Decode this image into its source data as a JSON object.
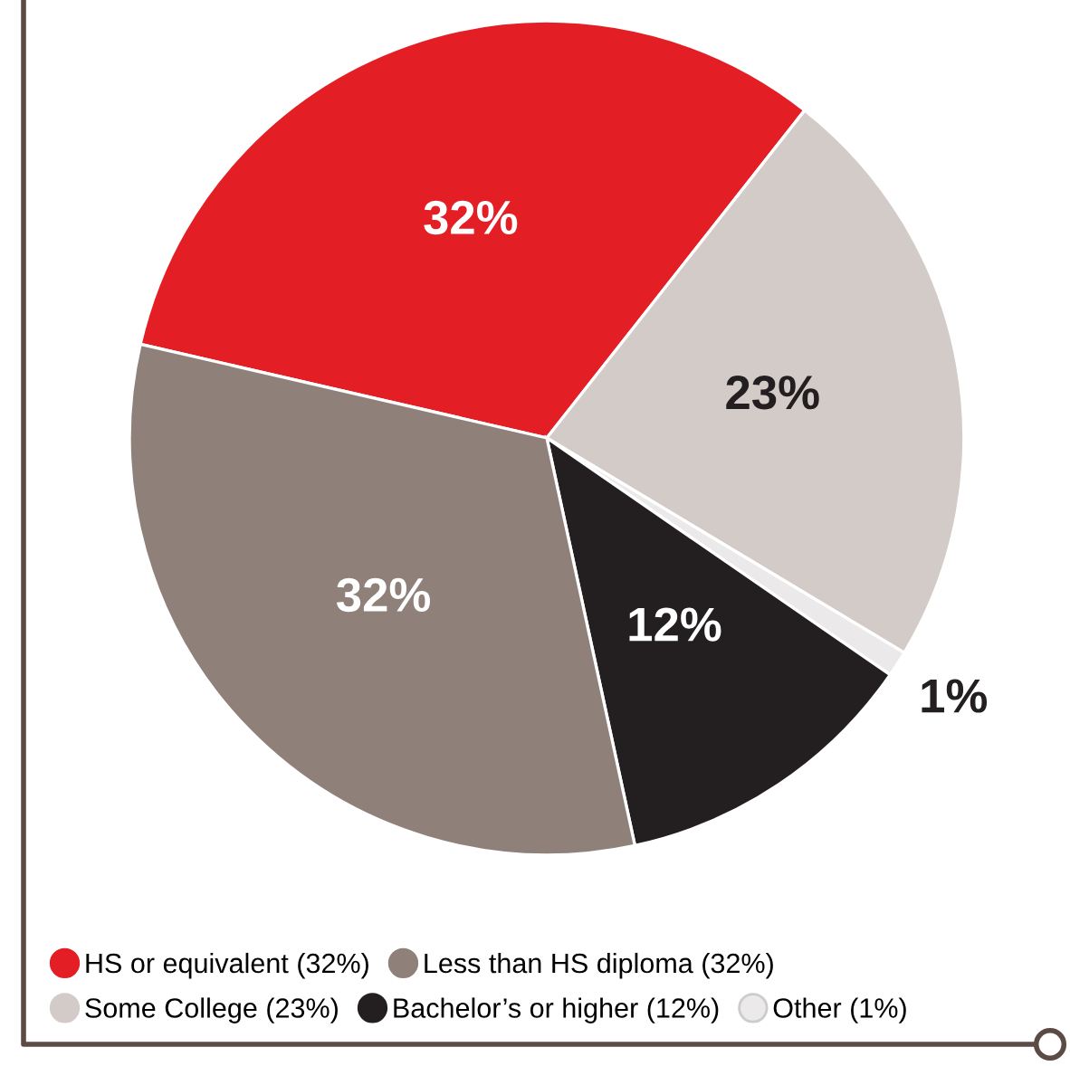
{
  "chart_data": {
    "type": "pie",
    "categories": [
      "HS or equivalent (32%)",
      "Some College (23%)",
      "Other (1%)",
      "Bachelor’s or higher (12%)",
      "Less than HS diploma (32%)"
    ],
    "values": [
      32,
      23,
      1,
      12,
      32
    ],
    "colors": [
      "#e31e24",
      "#d3cbc8",
      "#ebe9e9",
      "#231f20",
      "#8f8079"
    ],
    "value_labels": [
      "32%",
      "23%",
      "1%",
      "12%",
      "32%"
    ],
    "legend": "bottom"
  }
}
